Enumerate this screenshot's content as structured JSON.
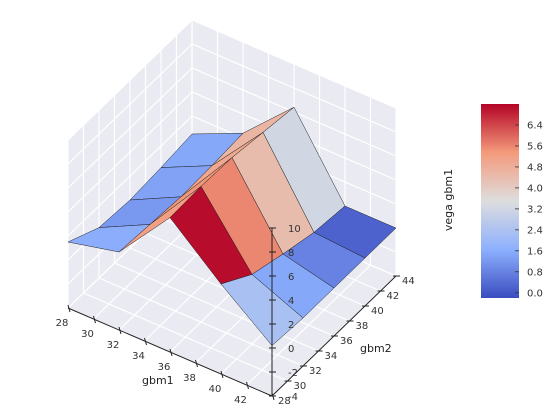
{
  "chart_data": {
    "type": "surface3d",
    "title": "",
    "xlabel": "gbm1",
    "ylabel": "gbm2",
    "zlabel": "vega gbm1",
    "xlim": [
      28,
      44
    ],
    "ylim": [
      28,
      44
    ],
    "zlim": [
      -4,
      10
    ],
    "x_ticks": [
      "28",
      "30",
      "32",
      "34",
      "36",
      "38",
      "40",
      "42",
      "44"
    ],
    "y_ticks": [
      "28",
      "30",
      "32",
      "34",
      "36",
      "38",
      "40",
      "42",
      "44"
    ],
    "z_ticks": [
      "-4",
      "-2",
      "0",
      "2",
      "4",
      "6",
      "8",
      "10"
    ],
    "colormap": "coolwarm",
    "x": [
      28,
      32,
      36,
      40,
      44
    ],
    "y": [
      28,
      32,
      36,
      40,
      44
    ],
    "z": [
      [
        1.5,
        0.2,
        0.0,
        0.2,
        0.5
      ],
      [
        2.5,
        2.3,
        2.1,
        2.2,
        2.4
      ],
      [
        7.2,
        7.3,
        7.2,
        6.8,
        6.4
      ],
      [
        3.5,
        1.8,
        1.0,
        0.3,
        0.0
      ],
      [
        0.2,
        0.0,
        0.0,
        0.0,
        0.0
      ]
    ],
    "facecolor_values": [
      [
        1.6,
        1.2,
        1.4,
        1.5
      ],
      [
        5.2,
        5.4,
        5.0,
        4.6
      ],
      [
        7.1,
        5.6,
        4.4,
        3.2
      ],
      [
        2.3,
        1.5,
        0.8,
        0.2
      ]
    ],
    "colorbar": {
      "ticks": [
        "0.0",
        "0.8",
        "1.6",
        "2.4",
        "3.2",
        "4.0",
        "4.8",
        "5.6",
        "6.4"
      ],
      "range": [
        -0.2,
        7.2
      ]
    },
    "grid": true,
    "pane_color": "#eaeaf2"
  }
}
